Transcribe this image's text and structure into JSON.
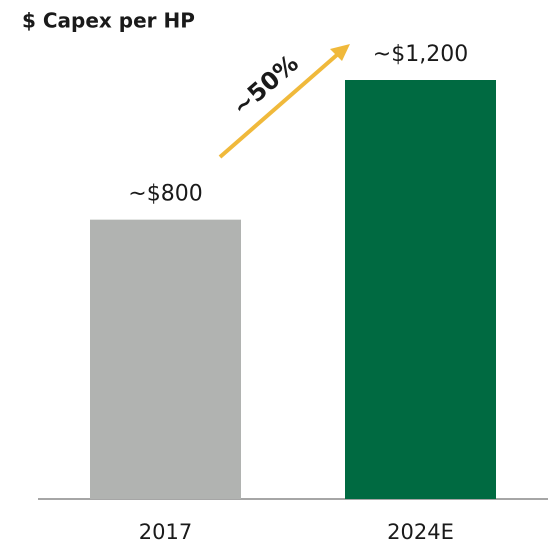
{
  "chart_data": {
    "type": "bar",
    "title": "$ Capex per HP",
    "categories": [
      "2017",
      "2024E"
    ],
    "values": [
      800,
      1200
    ],
    "value_labels": [
      "~$800",
      "~$1,200"
    ],
    "colors": [
      "#b1b3b1",
      "#006a41"
    ],
    "ylim": [
      0,
      1200
    ],
    "annotation": "~50%",
    "annotation_color": "#f0b93b"
  }
}
